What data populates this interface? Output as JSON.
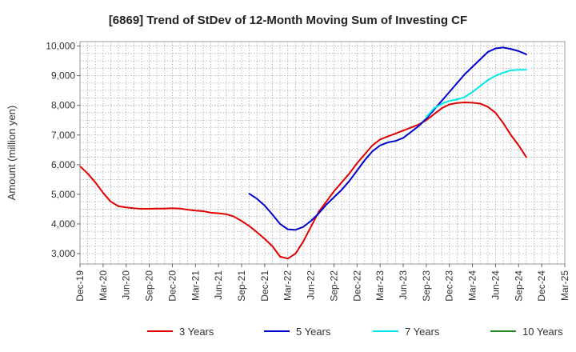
{
  "chart_data": {
    "type": "line",
    "title": "[6869]  Trend of StDev of 12-Month Moving Sum of Investing CF",
    "ylabel": "Amount (million yen)",
    "xlabel": "",
    "ylim": [
      2650,
      10150
    ],
    "yticks": [
      3000,
      4000,
      5000,
      6000,
      7000,
      8000,
      9000,
      10000
    ],
    "ytick_labels": [
      "3,000",
      "4,000",
      "5,000",
      "6,000",
      "7,000",
      "8,000",
      "9,000",
      "10,000"
    ],
    "x_tick_labels": [
      "Dec-19",
      "Mar-20",
      "Jun-20",
      "Sep-20",
      "Dec-20",
      "Mar-21",
      "Jun-21",
      "Sep-21",
      "Dec-21",
      "Mar-22",
      "Jun-22",
      "Sep-22",
      "Dec-22",
      "Mar-23",
      "Jun-23",
      "Sep-23",
      "Dec-23",
      "Mar-24",
      "Jun-24",
      "Sep-24",
      "Dec-24",
      "Mar-25"
    ],
    "x_unit": "month_index_from_Dec-19",
    "grid": true,
    "legend_position": "bottom",
    "series": [
      {
        "name": "3 Years",
        "color": "#e00000",
        "points": [
          [
            0,
            5950
          ],
          [
            1,
            5700
          ],
          [
            2,
            5400
          ],
          [
            3,
            5050
          ],
          [
            4,
            4750
          ],
          [
            5,
            4600
          ],
          [
            6,
            4560
          ],
          [
            7,
            4530
          ],
          [
            8,
            4510
          ],
          [
            9,
            4510
          ],
          [
            10,
            4520
          ],
          [
            11,
            4520
          ],
          [
            12,
            4530
          ],
          [
            13,
            4520
          ],
          [
            14,
            4480
          ],
          [
            15,
            4450
          ],
          [
            16,
            4430
          ],
          [
            17,
            4380
          ],
          [
            18,
            4360
          ],
          [
            19,
            4330
          ],
          [
            20,
            4250
          ],
          [
            21,
            4100
          ],
          [
            22,
            3930
          ],
          [
            23,
            3720
          ],
          [
            24,
            3500
          ],
          [
            25,
            3250
          ],
          [
            26,
            2900
          ],
          [
            27,
            2830
          ],
          [
            28,
            3000
          ],
          [
            29,
            3400
          ],
          [
            30,
            3900
          ],
          [
            31,
            4400
          ],
          [
            32,
            4750
          ],
          [
            33,
            5100
          ],
          [
            34,
            5400
          ],
          [
            35,
            5700
          ],
          [
            36,
            6050
          ],
          [
            37,
            6350
          ],
          [
            38,
            6650
          ],
          [
            39,
            6850
          ],
          [
            40,
            6950
          ],
          [
            41,
            7050
          ],
          [
            42,
            7150
          ],
          [
            43,
            7250
          ],
          [
            44,
            7350
          ],
          [
            45,
            7500
          ],
          [
            46,
            7700
          ],
          [
            47,
            7900
          ],
          [
            48,
            8030
          ],
          [
            49,
            8080
          ],
          [
            50,
            8100
          ],
          [
            51,
            8090
          ],
          [
            52,
            8060
          ],
          [
            53,
            7950
          ],
          [
            54,
            7750
          ],
          [
            55,
            7400
          ],
          [
            56,
            7000
          ],
          [
            57,
            6650
          ],
          [
            58,
            6250
          ]
        ]
      },
      {
        "name": "5 Years",
        "color": "#0000cc",
        "points": [
          [
            22,
            5020
          ],
          [
            23,
            4850
          ],
          [
            24,
            4620
          ],
          [
            25,
            4320
          ],
          [
            26,
            4000
          ],
          [
            27,
            3820
          ],
          [
            28,
            3800
          ],
          [
            29,
            3900
          ],
          [
            30,
            4100
          ],
          [
            31,
            4350
          ],
          [
            32,
            4650
          ],
          [
            33,
            4900
          ],
          [
            34,
            5150
          ],
          [
            35,
            5450
          ],
          [
            36,
            5800
          ],
          [
            37,
            6150
          ],
          [
            38,
            6450
          ],
          [
            39,
            6650
          ],
          [
            40,
            6750
          ],
          [
            41,
            6800
          ],
          [
            42,
            6900
          ],
          [
            43,
            7100
          ],
          [
            44,
            7300
          ],
          [
            45,
            7550
          ],
          [
            46,
            7850
          ],
          [
            47,
            8150
          ],
          [
            48,
            8450
          ],
          [
            49,
            8750
          ],
          [
            50,
            9050
          ],
          [
            51,
            9300
          ],
          [
            52,
            9550
          ],
          [
            53,
            9800
          ],
          [
            54,
            9920
          ],
          [
            55,
            9950
          ],
          [
            56,
            9900
          ],
          [
            57,
            9830
          ],
          [
            58,
            9720
          ]
        ]
      },
      {
        "name": "7 Years",
        "color": "#00e8e8",
        "points": [
          [
            45,
            7600
          ],
          [
            46,
            7900
          ],
          [
            47,
            8050
          ],
          [
            48,
            8150
          ],
          [
            49,
            8200
          ],
          [
            50,
            8280
          ],
          [
            51,
            8450
          ],
          [
            52,
            8650
          ],
          [
            53,
            8850
          ],
          [
            54,
            9000
          ],
          [
            55,
            9100
          ],
          [
            56,
            9180
          ],
          [
            57,
            9200
          ],
          [
            58,
            9200
          ]
        ]
      },
      {
        "name": "10 Years",
        "color": "#228b22",
        "points": []
      }
    ]
  }
}
